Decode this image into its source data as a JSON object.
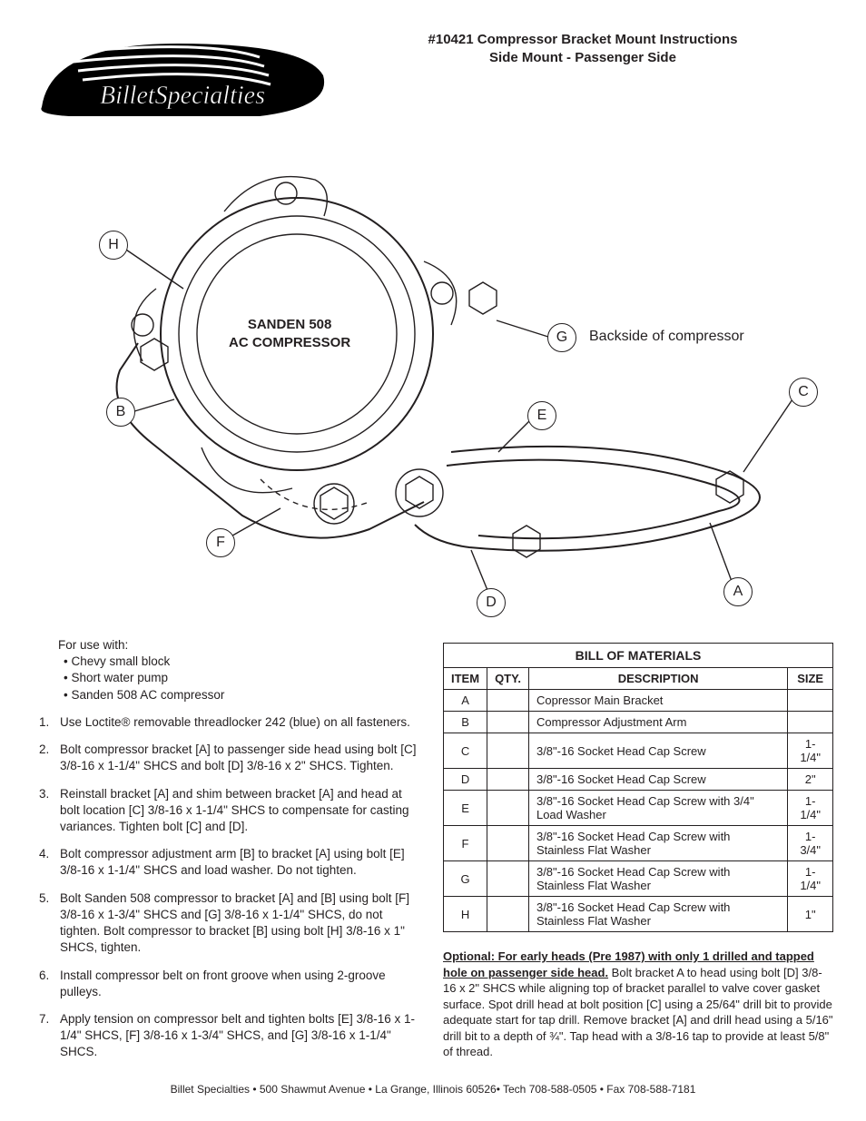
{
  "header": {
    "title_line1": "#10421 Compressor Bracket Mount Instructions",
    "title_line2": "Side Mount - Passenger Side"
  },
  "diagram": {
    "compressor_label_1": "SANDEN 508",
    "compressor_label_2": "AC COMPRESSOR",
    "backside_label": "Backside of compressor",
    "callouts": {
      "H": "H",
      "B": "B",
      "F": "F",
      "D": "D",
      "E": "E",
      "G": "G",
      "C": "C",
      "A": "A"
    }
  },
  "for_use": {
    "heading": "For use with:",
    "items": [
      "Chevy small block",
      "Short water pump",
      "Sanden 508 AC compressor"
    ]
  },
  "steps": [
    "Use Loctite® removable threadlocker 242 (blue) on all fasteners.",
    "Bolt compressor bracket [A] to passenger side head using bolt [C] 3/8-16 x 1-1/4\" SHCS and bolt [D] 3/8-16 x 2\" SHCS. Tighten.",
    "Reinstall bracket [A] and shim between bracket [A] and head at bolt location [C] 3/8-16 x 1-1/4\" SHCS to compensate for casting variances. Tighten bolt [C] and [D].",
    "Bolt compressor adjustment arm [B] to bracket [A] using bolt [E] 3/8-16 x 1-1/4\" SHCS and load washer. Do not tighten.",
    "Bolt Sanden 508 compressor to bracket [A] and [B] using bolt [F] 3/8-16 x 1-3/4\" SHCS and [G] 3/8-16 x 1-1/4\" SHCS, do not tighten. Bolt compressor to bracket [B] using bolt [H] 3/8-16 x 1\" SHCS, tighten.",
    "Install compressor belt on front groove when using 2-groove pulleys.",
    "Apply tension on compressor belt and tighten bolts [E] 3/8-16 x 1-1/4\" SHCS, [F] 3/8-16 x 1-3/4\" SHCS, and [G] 3/8-16 x 1-1/4\" SHCS."
  ],
  "bom": {
    "caption": "BILL OF MATERIALS",
    "headers": [
      "ITEM",
      "QTY.",
      "DESCRIPTION",
      "SIZE"
    ],
    "rows": [
      {
        "item": "A",
        "qty": "",
        "desc": "Copressor Main Bracket",
        "size": ""
      },
      {
        "item": "B",
        "qty": "",
        "desc": "Compressor Adjustment Arm",
        "size": ""
      },
      {
        "item": "C",
        "qty": "",
        "desc": "3/8\"-16 Socket Head Cap Screw",
        "size": "1-1/4\""
      },
      {
        "item": "D",
        "qty": "",
        "desc": "3/8\"-16 Socket Head Cap Screw",
        "size": "2\""
      },
      {
        "item": "E",
        "qty": "",
        "desc": "3/8\"-16 Socket Head Cap Screw with 3/4\" Load Washer",
        "size": "1-1/4\""
      },
      {
        "item": "F",
        "qty": "",
        "desc": "3/8\"-16 Socket Head Cap Screw with Stainless Flat Washer",
        "size": "1-3/4\""
      },
      {
        "item": "G",
        "qty": "",
        "desc": "3/8\"-16 Socket Head Cap Screw with Stainless Flat Washer",
        "size": "1-1/4\""
      },
      {
        "item": "H",
        "qty": "",
        "desc": "3/8\"-16 Socket Head Cap Screw with Stainless Flat Washer",
        "size": "1\""
      }
    ]
  },
  "optional": {
    "lead": "Optional: For early heads (Pre 1987) with only 1 drilled and tapped hole on passenger side head.",
    "body": " Bolt bracket A to head using bolt [D] 3/8-16 x 2\" SHCS while aligning top of bracket parallel to valve cover gasket surface. Spot drill head at bolt position [C] using a 25/64\" drill bit to provide adequate start for tap drill. Remove bracket [A] and drill head using a 5/16\" drill bit to a depth of ¾\". Tap head with a 3/8-16 tap to provide at least 5/8\" of thread."
  },
  "footer": "Billet Specialties • 500 Shawmut Avenue • La Grange, Illinois 60526• Tech 708-588-0505 • Fax 708-588-7181"
}
